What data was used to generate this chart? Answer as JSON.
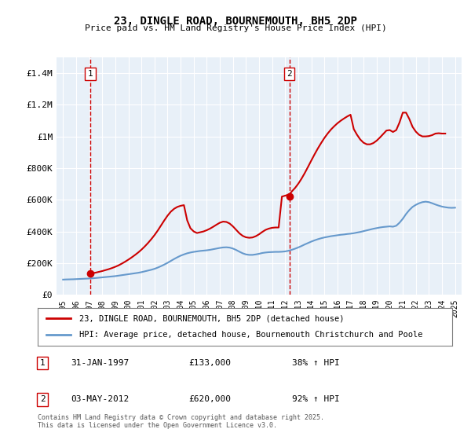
{
  "title": "23, DINGLE ROAD, BOURNEMOUTH, BH5 2DP",
  "subtitle": "Price paid vs. HM Land Registry's House Price Index (HPI)",
  "legend_line1": "23, DINGLE ROAD, BOURNEMOUTH, BH5 2DP (detached house)",
  "legend_line2": "HPI: Average price, detached house, Bournemouth Christchurch and Poole",
  "annotation1_label": "1",
  "annotation1_date": "31-JAN-1997",
  "annotation1_price": "£133,000",
  "annotation1_hpi": "38% ↑ HPI",
  "annotation2_label": "2",
  "annotation2_date": "03-MAY-2012",
  "annotation2_price": "£620,000",
  "annotation2_hpi": "92% ↑ HPI",
  "sale1_year": 1997.08,
  "sale1_value": 133000,
  "sale2_year": 2012.33,
  "sale2_value": 620000,
  "ylim": [
    0,
    1500000
  ],
  "xlim": [
    1994.5,
    2025.5
  ],
  "yticks": [
    0,
    200000,
    400000,
    600000,
    800000,
    1000000,
    1200000,
    1400000
  ],
  "ytick_labels": [
    "£0",
    "£200K",
    "£400K",
    "£600K",
    "£800K",
    "£1M",
    "£1.2M",
    "£1.4M"
  ],
  "xticks": [
    1995,
    1996,
    1997,
    1998,
    1999,
    2000,
    2001,
    2002,
    2003,
    2004,
    2005,
    2006,
    2007,
    2008,
    2009,
    2010,
    2011,
    2012,
    2013,
    2014,
    2015,
    2016,
    2017,
    2018,
    2019,
    2020,
    2021,
    2022,
    2023,
    2024,
    2025
  ],
  "bg_color": "#e8f0f8",
  "plot_bg_color": "#e8f0f8",
  "red_color": "#cc0000",
  "blue_color": "#6699cc",
  "footer": "Contains HM Land Registry data © Crown copyright and database right 2025.\nThis data is licensed under the Open Government Licence v3.0.",
  "hpi_years": [
    1995,
    1995.25,
    1995.5,
    1995.75,
    1996,
    1996.25,
    1996.5,
    1996.75,
    1997,
    1997.25,
    1997.5,
    1997.75,
    1998,
    1998.25,
    1998.5,
    1998.75,
    1999,
    1999.25,
    1999.5,
    1999.75,
    2000,
    2000.25,
    2000.5,
    2000.75,
    2001,
    2001.25,
    2001.5,
    2001.75,
    2002,
    2002.25,
    2002.5,
    2002.75,
    2003,
    2003.25,
    2003.5,
    2003.75,
    2004,
    2004.25,
    2004.5,
    2004.75,
    2005,
    2005.25,
    2005.5,
    2005.75,
    2006,
    2006.25,
    2006.5,
    2006.75,
    2007,
    2007.25,
    2007.5,
    2007.75,
    2008,
    2008.25,
    2008.5,
    2008.75,
    2009,
    2009.25,
    2009.5,
    2009.75,
    2010,
    2010.25,
    2010.5,
    2010.75,
    2011,
    2011.25,
    2011.5,
    2011.75,
    2012,
    2012.25,
    2012.5,
    2012.75,
    2013,
    2013.25,
    2013.5,
    2013.75,
    2014,
    2014.25,
    2014.5,
    2014.75,
    2015,
    2015.25,
    2015.5,
    2015.75,
    2016,
    2016.25,
    2016.5,
    2016.75,
    2017,
    2017.25,
    2017.5,
    2017.75,
    2018,
    2018.25,
    2018.5,
    2018.75,
    2019,
    2019.25,
    2019.5,
    2019.75,
    2020,
    2020.25,
    2020.5,
    2020.75,
    2021,
    2021.25,
    2021.5,
    2021.75,
    2022,
    2022.25,
    2022.5,
    2022.75,
    2023,
    2023.25,
    2023.5,
    2023.75,
    2024,
    2024.25,
    2024.5,
    2024.75,
    2025
  ],
  "hpi_values": [
    96000,
    97000,
    97500,
    98000,
    99000,
    100000,
    101000,
    102000,
    103000,
    104000,
    106000,
    108000,
    110000,
    112000,
    114000,
    116000,
    118000,
    121000,
    124000,
    127000,
    130000,
    133000,
    136000,
    139000,
    143000,
    148000,
    153000,
    158000,
    164000,
    172000,
    181000,
    191000,
    202000,
    214000,
    226000,
    237000,
    247000,
    255000,
    262000,
    267000,
    271000,
    274000,
    277000,
    279000,
    281000,
    284000,
    288000,
    292000,
    296000,
    299000,
    300000,
    298000,
    292000,
    283000,
    272000,
    262000,
    255000,
    252000,
    252000,
    255000,
    259000,
    264000,
    267000,
    269000,
    270000,
    271000,
    271000,
    272000,
    274000,
    278000,
    284000,
    291000,
    299000,
    308000,
    318000,
    327000,
    336000,
    344000,
    351000,
    357000,
    362000,
    366000,
    370000,
    373000,
    376000,
    379000,
    381000,
    384000,
    386000,
    389000,
    393000,
    397000,
    402000,
    407000,
    412000,
    417000,
    421000,
    425000,
    428000,
    430000,
    432000,
    430000,
    436000,
    455000,
    480000,
    510000,
    535000,
    555000,
    568000,
    578000,
    585000,
    588000,
    585000,
    578000,
    570000,
    563000,
    557000,
    553000,
    550000,
    549000,
    550000
  ],
  "property_years": [
    1995,
    1995.25,
    1995.5,
    1995.75,
    1996,
    1996.25,
    1996.5,
    1996.75,
    1997.08,
    1997.25,
    1997.5,
    1997.75,
    1998,
    1998.25,
    1998.5,
    1998.75,
    1999,
    1999.25,
    1999.5,
    1999.75,
    2000,
    2000.25,
    2000.5,
    2000.75,
    2001,
    2001.25,
    2001.5,
    2001.75,
    2002,
    2002.25,
    2002.5,
    2002.75,
    2003,
    2003.25,
    2003.5,
    2003.75,
    2004,
    2004.25,
    2004.5,
    2004.75,
    2005,
    2005.25,
    2005.5,
    2005.75,
    2006,
    2006.25,
    2006.5,
    2006.75,
    2007,
    2007.25,
    2007.5,
    2007.75,
    2008,
    2008.25,
    2008.5,
    2008.75,
    2009,
    2009.25,
    2009.5,
    2009.75,
    2010,
    2010.25,
    2010.5,
    2010.75,
    2011,
    2011.25,
    2011.5,
    2011.75,
    2012.33,
    2012.5,
    2012.75,
    2013,
    2013.25,
    2013.5,
    2013.75,
    2014,
    2014.25,
    2014.5,
    2014.75,
    2015,
    2015.25,
    2015.5,
    2015.75,
    2016,
    2016.25,
    2016.5,
    2016.75,
    2017,
    2017.25,
    2017.5,
    2017.75,
    2018,
    2018.25,
    2018.5,
    2018.75,
    2019,
    2019.25,
    2019.5,
    2019.75,
    2020,
    2020.25,
    2020.5,
    2020.75,
    2021,
    2021.25,
    2021.5,
    2021.75,
    2022,
    2022.25,
    2022.5,
    2022.75,
    2023,
    2023.25,
    2023.5,
    2023.75,
    2024,
    2024.25,
    2024.5,
    2024.75,
    2025
  ],
  "property_values": [
    null,
    null,
    null,
    null,
    null,
    null,
    null,
    null,
    133000,
    136000,
    140000,
    145000,
    150000,
    156000,
    162000,
    169000,
    177000,
    186000,
    197000,
    209000,
    222000,
    236000,
    251000,
    267000,
    285000,
    305000,
    327000,
    351000,
    377000,
    406000,
    438000,
    470000,
    500000,
    525000,
    543000,
    555000,
    562000,
    566000,
    470000,
    420000,
    400000,
    390000,
    395000,
    400000,
    408000,
    418000,
    430000,
    443000,
    455000,
    462000,
    460000,
    450000,
    432000,
    410000,
    388000,
    372000,
    363000,
    360000,
    362000,
    370000,
    382000,
    397000,
    410000,
    418000,
    423000,
    425000,
    425000,
    620000,
    634000,
    652000,
    674000,
    701000,
    733000,
    769000,
    808000,
    848000,
    887000,
    924000,
    958000,
    990000,
    1018000,
    1043000,
    1064000,
    1083000,
    1099000,
    1113000,
    1126000,
    1137000,
    1046000,
    1010000,
    980000,
    960000,
    950000,
    950000,
    958000,
    973000,
    993000,
    1015000,
    1037000,
    1040000,
    1028000,
    1040000,
    1088000,
    1150000,
    1150000,
    1110000,
    1060000,
    1030000,
    1010000,
    1000000,
    1000000,
    1002000,
    1008000,
    1018000,
    1020000,
    1018000,
    1018000
  ]
}
